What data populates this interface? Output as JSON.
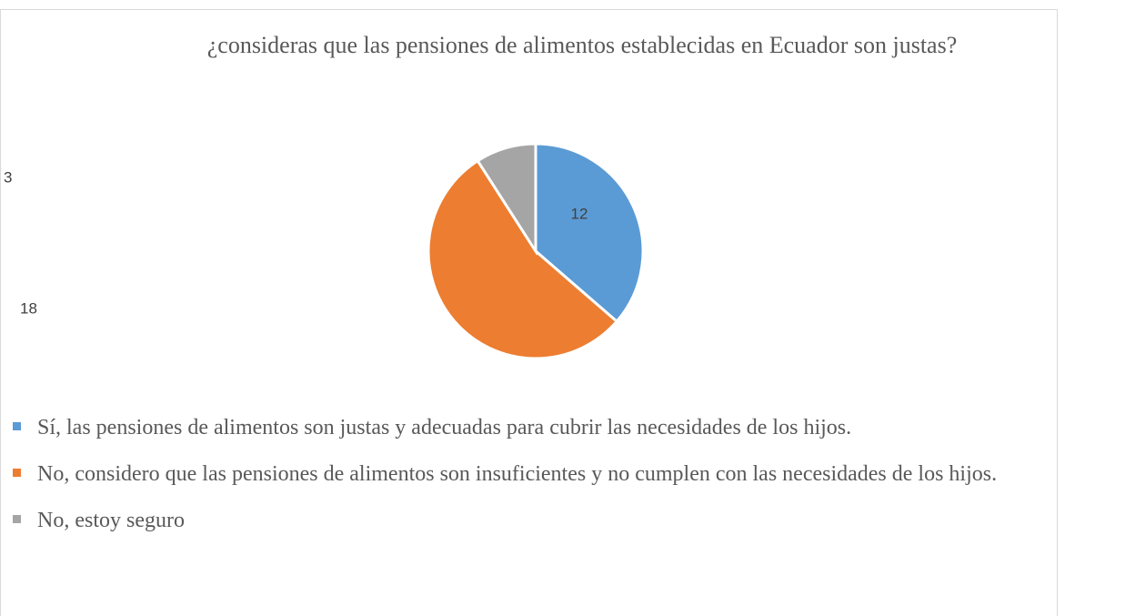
{
  "chart_data": {
    "type": "pie",
    "title": "¿consideras que las pensiones de alimentos establecidas en Ecuador son justas?",
    "categories": [
      "Sí, las pensiones de alimentos son justas y adecuadas para cubrir las necesidades de los hijos.",
      "No, considero que las pensiones de alimentos son insuficientes y no cumplen con las necesidades de los hijos.",
      "No, estoy seguro"
    ],
    "values": [
      12,
      18,
      3
    ],
    "colors": [
      "#5b9bd5",
      "#ed7d31",
      "#a5a5a5"
    ]
  }
}
